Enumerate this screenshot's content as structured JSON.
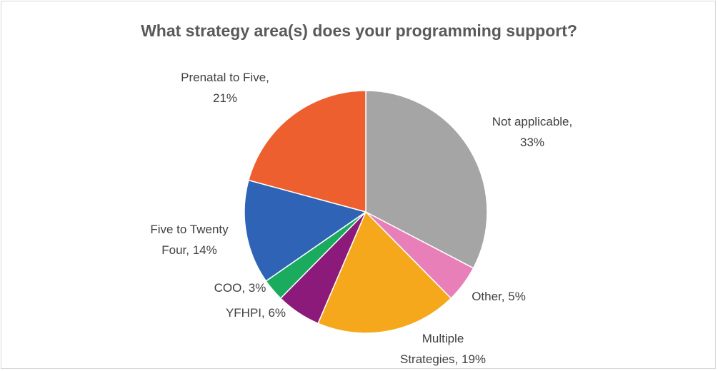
{
  "chart_data": {
    "type": "pie",
    "title": "What strategy area(s) does your programming support?",
    "categories": [
      "Not applicable,",
      "Other,",
      "Multiple Strategies,",
      "YFHPI,",
      "COO,",
      "Five to Twenty Four,",
      "Prenatal to Five,"
    ],
    "values": [
      33,
      5,
      19,
      6,
      3,
      14,
      21
    ],
    "value_labels": [
      "33%",
      "5%",
      "19%",
      "6%",
      "3%",
      "14%",
      "21%"
    ],
    "colors": [
      "#a5a5a5",
      "#e87fb9",
      "#f5a81c",
      "#8c1a7b",
      "#1aab5f",
      "#2e63b5",
      "#ee5f2f"
    ]
  }
}
